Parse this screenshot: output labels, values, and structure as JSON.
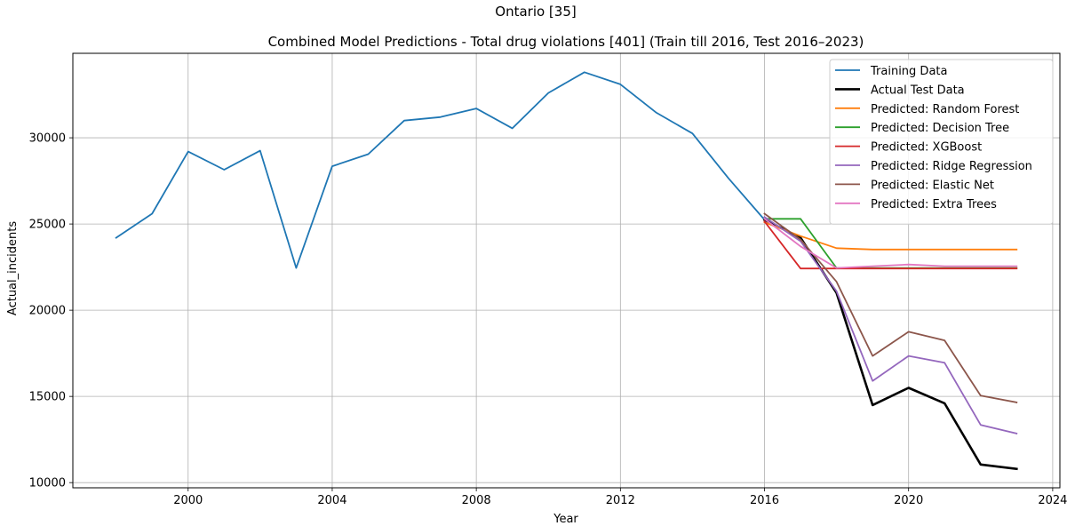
{
  "chart_data": {
    "type": "line",
    "suptitle": "Ontario [35]",
    "title": "Combined Model Predictions - Total drug violations [401] (Train till 2016, Test 2016–2023)",
    "xlabel": "Year",
    "ylabel": "Actual_incidents",
    "xlim": [
      1996.8,
      2024.2
    ],
    "ylim": [
      9700,
      34900
    ],
    "xticks": [
      2000,
      2004,
      2008,
      2012,
      2016,
      2020,
      2024
    ],
    "yticks": [
      10000,
      15000,
      20000,
      25000,
      30000
    ],
    "xtick_labels": [
      "2000",
      "2004",
      "2008",
      "2012",
      "2016",
      "2020",
      "2024"
    ],
    "ytick_labels": [
      "10000",
      "15000",
      "20000",
      "25000",
      "30000"
    ],
    "grid": true,
    "legend_position": "top-right",
    "series": [
      {
        "name": "Training Data",
        "color": "#1f77b4",
        "width": 1.8,
        "x": [
          1998,
          1999,
          2000,
          2001,
          2002,
          2003,
          2004,
          2005,
          2006,
          2007,
          2008,
          2009,
          2010,
          2011,
          2012,
          2013,
          2014,
          2015,
          2016
        ],
        "y": [
          24200,
          25600,
          29200,
          28150,
          29250,
          22450,
          28350,
          29050,
          31000,
          31200,
          31700,
          30550,
          32600,
          33800,
          33100,
          31450,
          30250,
          27650,
          25250
        ]
      },
      {
        "name": "Actual Test Data",
        "color": "#000000",
        "width": 2.6,
        "x": [
          2016,
          2017,
          2018,
          2019,
          2020,
          2021,
          2022,
          2023
        ],
        "y": [
          25250,
          24200,
          21000,
          14500,
          15500,
          14600,
          11050,
          10800
        ]
      },
      {
        "name": "Predicted: Random Forest",
        "color": "#ff7f0e",
        "width": 1.8,
        "x": [
          2016,
          2017,
          2018,
          2019,
          2020,
          2021,
          2022,
          2023
        ],
        "y": [
          25100,
          24300,
          23600,
          23520,
          23520,
          23520,
          23520,
          23520
        ]
      },
      {
        "name": "Predicted: Decision Tree",
        "color": "#2ca02c",
        "width": 1.8,
        "x": [
          2016,
          2017,
          2018,
          2019,
          2020,
          2021,
          2022,
          2023
        ],
        "y": [
          25300,
          25300,
          22450,
          22450,
          22450,
          22450,
          22450,
          22450
        ]
      },
      {
        "name": "Predicted: XGBoost",
        "color": "#d62728",
        "width": 1.8,
        "x": [
          2016,
          2017,
          2018,
          2019,
          2020,
          2021,
          2022,
          2023
        ],
        "y": [
          25150,
          22420,
          22420,
          22420,
          22420,
          22420,
          22420,
          22420
        ]
      },
      {
        "name": "Predicted: Ridge Regression",
        "color": "#9467bd",
        "width": 1.8,
        "x": [
          2016,
          2017,
          2018,
          2019,
          2020,
          2021,
          2022,
          2023
        ],
        "y": [
          25400,
          24000,
          21100,
          15900,
          17350,
          16950,
          13350,
          12850
        ]
      },
      {
        "name": "Predicted: Elastic Net",
        "color": "#8c564b",
        "width": 1.8,
        "x": [
          2016,
          2017,
          2018,
          2019,
          2020,
          2021,
          2022,
          2023
        ],
        "y": [
          25600,
          24100,
          21650,
          17350,
          18750,
          18250,
          15050,
          14650
        ]
      },
      {
        "name": "Predicted: Extra Trees",
        "color": "#e377c2",
        "width": 1.8,
        "x": [
          2016,
          2017,
          2018,
          2019,
          2020,
          2021,
          2022,
          2023
        ],
        "y": [
          25300,
          23700,
          22450,
          22550,
          22650,
          22550,
          22550,
          22550
        ]
      }
    ]
  }
}
